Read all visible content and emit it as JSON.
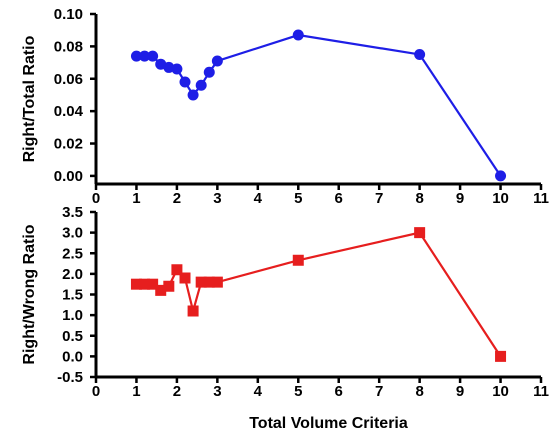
{
  "chart_data": [
    {
      "type": "line",
      "title": "",
      "xlabel": "",
      "ylabel": "Right/Total Ratio",
      "xlim": [
        0,
        11
      ],
      "ylim": [
        -0.005,
        0.1
      ],
      "xticks": [
        "0",
        "1",
        "2",
        "3",
        "4",
        "5",
        "6",
        "7",
        "8",
        "9",
        "10",
        "11"
      ],
      "yticks": [
        "0.00",
        "0.02",
        "0.04",
        "0.06",
        "0.08",
        "0.10"
      ],
      "yticks_values": [
        0,
        0.02,
        0.04,
        0.06,
        0.08,
        0.1
      ],
      "grid": false,
      "color": "#1e1ee6",
      "marker": "circle",
      "series": [
        {
          "x": [
            1.0,
            1.2,
            1.4,
            1.6,
            1.8,
            2.0,
            2.2,
            2.4,
            2.6,
            2.8,
            3.0,
            5.0,
            8.0,
            10.0
          ],
          "y": [
            0.074,
            0.074,
            0.074,
            0.069,
            0.067,
            0.066,
            0.058,
            0.05,
            0.056,
            0.064,
            0.071,
            0.087,
            0.075,
            0.0
          ]
        }
      ]
    },
    {
      "type": "line",
      "title": "",
      "xlabel": "Total Volume Criteria",
      "ylabel": "Right/Wrong Ratio",
      "xlim": [
        0,
        11
      ],
      "ylim": [
        -0.5,
        3.5
      ],
      "xticks": [
        "0",
        "1",
        "2",
        "3",
        "4",
        "5",
        "6",
        "7",
        "8",
        "9",
        "10",
        "11"
      ],
      "yticks": [
        "-0.5",
        "0.0",
        "0.5",
        "1.0",
        "1.5",
        "2.0",
        "2.5",
        "3.0",
        "3.5"
      ],
      "yticks_values": [
        -0.5,
        0,
        0.5,
        1.0,
        1.5,
        2.0,
        2.5,
        3.0,
        3.5
      ],
      "grid": false,
      "color": "#e61e1e",
      "marker": "square",
      "series": [
        {
          "x": [
            1.0,
            1.2,
            1.4,
            1.6,
            1.8,
            2.0,
            2.2,
            2.4,
            2.6,
            2.8,
            3.0,
            5.0,
            8.0,
            10.0
          ],
          "y": [
            1.75,
            1.75,
            1.75,
            1.6,
            1.7,
            2.1,
            1.9,
            1.1,
            1.8,
            1.8,
            1.8,
            2.33,
            3.0,
            0.0
          ]
        }
      ]
    }
  ]
}
